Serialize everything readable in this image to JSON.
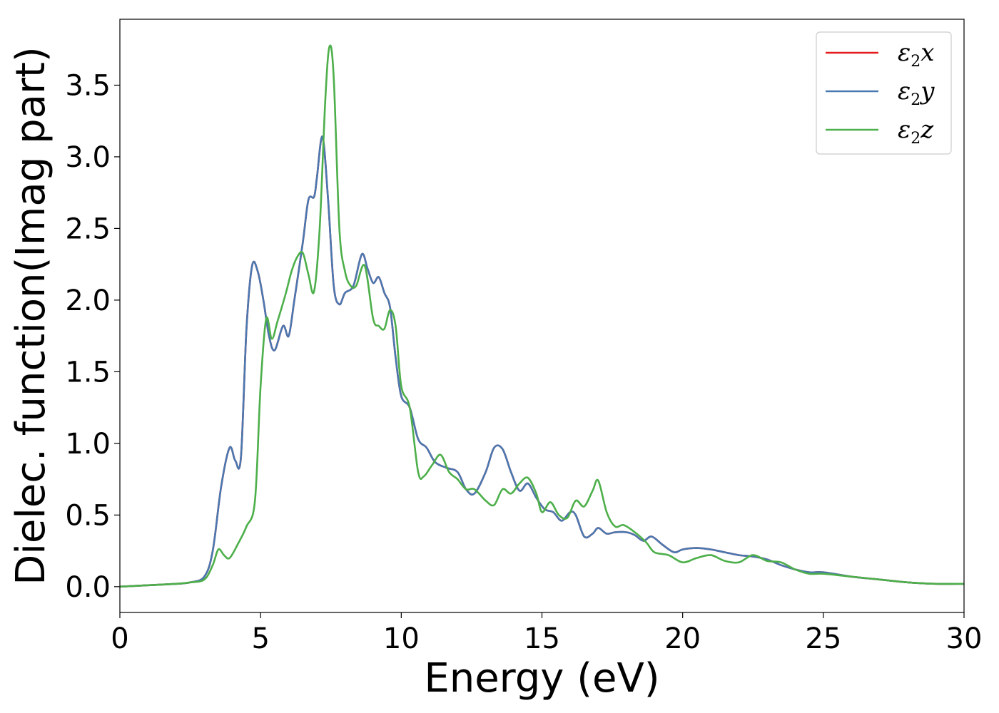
{
  "chart_data": {
    "type": "line",
    "xlabel": "Energy (eV)",
    "ylabel": "Dielec. function(Imag part)",
    "xlim": [
      0,
      30
    ],
    "ylim": [
      -0.18,
      3.96
    ],
    "xticks": [
      0,
      5,
      10,
      15,
      20,
      25,
      30
    ],
    "yticks": [
      0.0,
      0.5,
      1.0,
      1.5,
      2.0,
      2.5,
      3.0,
      3.5
    ],
    "xtick_labels": [
      "0",
      "5",
      "10",
      "15",
      "20",
      "25",
      "30"
    ],
    "ytick_labels": [
      "0.0",
      "0.5",
      "1.0",
      "1.5",
      "2.0",
      "2.5",
      "3.0",
      "3.5"
    ],
    "grid": false,
    "legend_position": "top-right",
    "series": [
      {
        "name": "ε2x",
        "legend": {
          "base": "ε",
          "sub": "2",
          "suffix": "x"
        },
        "color": "#e41a1c",
        "x": [
          0,
          1,
          2,
          2.5,
          3,
          3.3,
          3.6,
          3.9,
          4.1,
          4.3,
          4.5,
          4.7,
          4.9,
          5.1,
          5.3,
          5.5,
          5.8,
          6.0,
          6.2,
          6.5,
          6.7,
          6.9,
          7.0,
          7.2,
          7.4,
          7.6,
          7.8,
          8.0,
          8.3,
          8.6,
          8.8,
          9.0,
          9.2,
          9.4,
          9.6,
          9.8,
          10.0,
          10.3,
          10.6,
          10.9,
          11.2,
          11.6,
          12.0,
          12.3,
          12.6,
          13.0,
          13.3,
          13.6,
          13.9,
          14.2,
          14.5,
          14.8,
          15.1,
          15.4,
          15.7,
          16.0,
          16.2,
          16.5,
          16.8,
          17.0,
          17.3,
          17.6,
          18.0,
          18.3,
          18.6,
          18.9,
          19.3,
          19.7,
          20.0,
          20.5,
          21.0,
          21.5,
          22.0,
          22.5,
          23.0,
          23.5,
          24.0,
          24.5,
          25.0,
          26.0,
          27.0,
          28.0,
          29.0,
          30.0
        ],
        "y": [
          0.0,
          0.01,
          0.02,
          0.03,
          0.07,
          0.25,
          0.7,
          0.97,
          0.88,
          0.9,
          1.8,
          2.24,
          2.2,
          2.0,
          1.75,
          1.65,
          1.82,
          1.75,
          2.0,
          2.4,
          2.7,
          2.72,
          2.85,
          3.14,
          2.7,
          2.1,
          1.97,
          2.05,
          2.1,
          2.32,
          2.22,
          2.12,
          2.16,
          2.05,
          1.95,
          1.6,
          1.33,
          1.25,
          1.03,
          0.97,
          0.87,
          0.83,
          0.8,
          0.68,
          0.65,
          0.8,
          0.97,
          0.96,
          0.8,
          0.67,
          0.72,
          0.62,
          0.54,
          0.52,
          0.46,
          0.52,
          0.5,
          0.35,
          0.37,
          0.41,
          0.37,
          0.38,
          0.38,
          0.36,
          0.32,
          0.35,
          0.29,
          0.24,
          0.26,
          0.27,
          0.26,
          0.24,
          0.22,
          0.21,
          0.19,
          0.15,
          0.12,
          0.1,
          0.1,
          0.07,
          0.05,
          0.03,
          0.02,
          0.02
        ]
      },
      {
        "name": "ε2y",
        "legend": {
          "base": "ε",
          "sub": "2",
          "suffix": "y"
        },
        "color": "#4a78b0",
        "x": [
          0,
          1,
          2,
          2.5,
          3,
          3.3,
          3.6,
          3.9,
          4.1,
          4.3,
          4.5,
          4.7,
          4.9,
          5.1,
          5.3,
          5.5,
          5.8,
          6.0,
          6.2,
          6.5,
          6.7,
          6.9,
          7.0,
          7.2,
          7.4,
          7.6,
          7.8,
          8.0,
          8.3,
          8.6,
          8.8,
          9.0,
          9.2,
          9.4,
          9.6,
          9.8,
          10.0,
          10.3,
          10.6,
          10.9,
          11.2,
          11.6,
          12.0,
          12.3,
          12.6,
          13.0,
          13.3,
          13.6,
          13.9,
          14.2,
          14.5,
          14.8,
          15.1,
          15.4,
          15.7,
          16.0,
          16.2,
          16.5,
          16.8,
          17.0,
          17.3,
          17.6,
          18.0,
          18.3,
          18.6,
          18.9,
          19.3,
          19.7,
          20.0,
          20.5,
          21.0,
          21.5,
          22.0,
          22.5,
          23.0,
          23.5,
          24.0,
          24.5,
          25.0,
          26.0,
          27.0,
          28.0,
          29.0,
          30.0
        ],
        "y": [
          0.0,
          0.01,
          0.02,
          0.03,
          0.07,
          0.25,
          0.7,
          0.97,
          0.88,
          0.9,
          1.8,
          2.24,
          2.2,
          2.0,
          1.75,
          1.65,
          1.82,
          1.75,
          2.0,
          2.4,
          2.7,
          2.72,
          2.85,
          3.14,
          2.7,
          2.1,
          1.97,
          2.05,
          2.1,
          2.32,
          2.22,
          2.12,
          2.16,
          2.05,
          1.95,
          1.6,
          1.33,
          1.25,
          1.03,
          0.97,
          0.87,
          0.83,
          0.8,
          0.68,
          0.65,
          0.8,
          0.97,
          0.96,
          0.8,
          0.67,
          0.72,
          0.62,
          0.54,
          0.52,
          0.46,
          0.52,
          0.5,
          0.35,
          0.37,
          0.41,
          0.37,
          0.38,
          0.38,
          0.36,
          0.32,
          0.35,
          0.29,
          0.24,
          0.26,
          0.27,
          0.26,
          0.24,
          0.22,
          0.21,
          0.19,
          0.15,
          0.12,
          0.1,
          0.1,
          0.07,
          0.05,
          0.03,
          0.02,
          0.02
        ]
      },
      {
        "name": "ε2z",
        "legend": {
          "base": "ε",
          "sub": "2",
          "suffix": "z"
        },
        "color": "#4daf4a",
        "x": [
          0,
          1,
          2,
          2.5,
          3,
          3.3,
          3.5,
          3.7,
          3.9,
          4.2,
          4.5,
          4.8,
          5.0,
          5.2,
          5.4,
          5.6,
          5.9,
          6.1,
          6.3,
          6.5,
          6.7,
          6.9,
          7.1,
          7.3,
          7.45,
          7.6,
          7.8,
          8.0,
          8.2,
          8.4,
          8.7,
          9.0,
          9.2,
          9.4,
          9.6,
          9.8,
          10.0,
          10.3,
          10.6,
          10.8,
          11.1,
          11.4,
          11.7,
          12.0,
          12.3,
          12.6,
          13.0,
          13.3,
          13.6,
          13.9,
          14.2,
          14.5,
          14.8,
          15.0,
          15.3,
          15.6,
          15.9,
          16.2,
          16.5,
          16.8,
          17.0,
          17.3,
          17.6,
          17.9,
          18.3,
          18.7,
          19.0,
          19.5,
          20.0,
          20.5,
          21.0,
          21.5,
          22.0,
          22.5,
          23.0,
          23.5,
          24.0,
          24.5,
          25.0,
          26.0,
          27.0,
          28.0,
          29.0,
          30.0
        ],
        "y": [
          0.0,
          0.01,
          0.02,
          0.03,
          0.05,
          0.15,
          0.26,
          0.22,
          0.2,
          0.3,
          0.42,
          0.6,
          1.4,
          1.87,
          1.73,
          1.85,
          2.05,
          2.2,
          2.3,
          2.33,
          2.18,
          2.06,
          2.5,
          3.4,
          3.77,
          3.55,
          2.5,
          2.2,
          2.1,
          2.1,
          2.24,
          1.87,
          1.82,
          1.8,
          1.93,
          1.82,
          1.4,
          1.25,
          0.8,
          0.77,
          0.85,
          0.92,
          0.8,
          0.75,
          0.68,
          0.68,
          0.6,
          0.57,
          0.68,
          0.65,
          0.72,
          0.76,
          0.65,
          0.52,
          0.59,
          0.5,
          0.48,
          0.6,
          0.56,
          0.67,
          0.74,
          0.52,
          0.42,
          0.43,
          0.38,
          0.31,
          0.24,
          0.22,
          0.17,
          0.2,
          0.22,
          0.18,
          0.17,
          0.22,
          0.18,
          0.17,
          0.12,
          0.09,
          0.09,
          0.07,
          0.05,
          0.03,
          0.02,
          0.02
        ]
      }
    ]
  }
}
